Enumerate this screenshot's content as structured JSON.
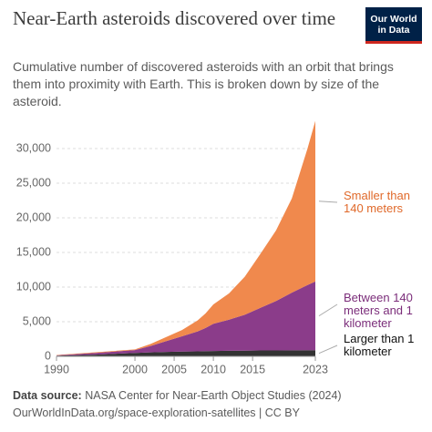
{
  "header": {
    "title": "Near-Earth asteroids discovered over time",
    "subtitle": "Cumulative number of discovered asteroids with an orbit that brings them into proximity with Earth. This is broken down by size of the asteroid.",
    "logo": "Our World in Data"
  },
  "chart_data": {
    "type": "stacked-area",
    "x": [
      1990,
      1995,
      2000,
      2002,
      2004,
      2006,
      2008,
      2009,
      2010,
      2012,
      2014,
      2016,
      2018,
      2020,
      2022,
      2023
    ],
    "series": [
      {
        "name": "Larger than 1 kilometer",
        "color": "#333333",
        "label_color": "#111111",
        "values": [
          100,
          250,
          500,
          580,
          640,
          690,
          730,
          750,
          770,
          800,
          830,
          850,
          860,
          870,
          880,
          880
        ]
      },
      {
        "name": "Between 140 meters and 1 kilometer",
        "color": "#8b3c8a",
        "label_color": "#7b2d7a",
        "values": [
          50,
          250,
          400,
          920,
          1560,
          2210,
          2870,
          3350,
          3930,
          4500,
          5170,
          6150,
          7140,
          8330,
          9420,
          9920
        ]
      },
      {
        "name": "Smaller than 140 meters",
        "color": "#f0894d",
        "label_color": "#e0692a",
        "values": [
          50,
          100,
          100,
          300,
          600,
          900,
          1600,
          2100,
          2800,
          3800,
          5500,
          7800,
          10200,
          13600,
          19700,
          23200
        ]
      }
    ],
    "xlim": [
      1990,
      2023
    ],
    "xticks": [
      1990,
      2000,
      2005,
      2010,
      2015,
      2023
    ],
    "ylim": [
      0,
      35000
    ],
    "yticks": [
      0,
      {
        "value": 5000,
        "label": "5,000"
      },
      {
        "value": 10000,
        "label": "10,000"
      },
      {
        "value": 15000,
        "label": "15,000"
      },
      {
        "value": 20000,
        "label": "20,000"
      },
      {
        "value": 25000,
        "label": "25,000"
      },
      {
        "value": 30000,
        "label": "30,000"
      }
    ],
    "grid": true
  },
  "footer": {
    "source_label": "Data source:",
    "source": "NASA Center for Near-Earth Object Studies (2024)",
    "url": "OurWorldInData.org/space-exploration-satellites | CC BY"
  }
}
